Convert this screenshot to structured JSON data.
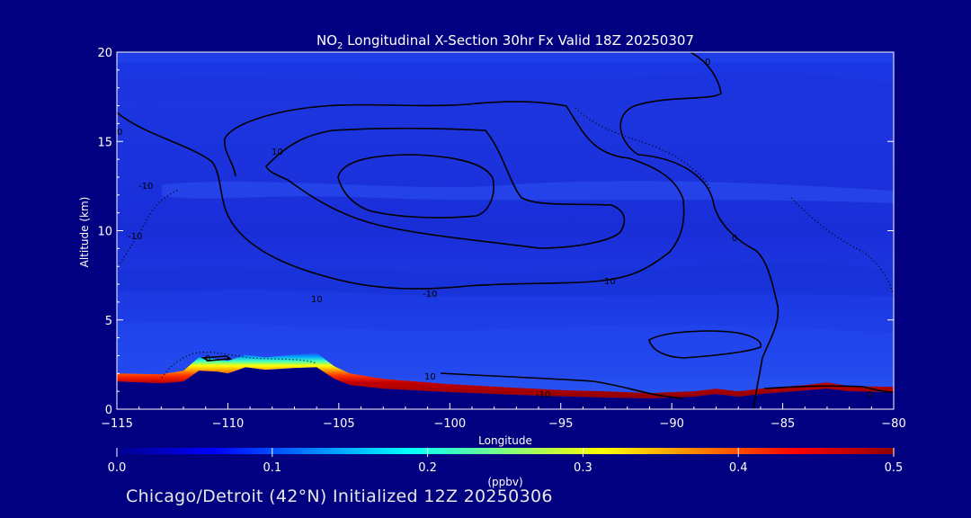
{
  "chart_data": {
    "type": "heatmap",
    "title": {
      "prefix": "NO",
      "subscript": "2",
      "rest": " Longitudinal X-Section 30hr  Fx Valid 18Z 20250307"
    },
    "xlabel": "Longitude",
    "ylabel": "Altitude (km)",
    "xlim": [
      -115,
      -80
    ],
    "ylim": [
      0,
      20
    ],
    "xticks": [
      -115,
      -110,
      -105,
      -100,
      -95,
      -90,
      -85,
      -80
    ],
    "yticks": [
      0,
      5,
      10,
      15,
      20
    ],
    "colorbar": {
      "label": "(ppbv)",
      "range": [
        0.0,
        0.5
      ],
      "ticks": [
        "0.0",
        "0.1",
        "0.2",
        "0.3",
        "0.4",
        "0.5"
      ],
      "colors": [
        "#00008f",
        "#0000ff",
        "#0080ff",
        "#00ffff",
        "#80ff80",
        "#ffff00",
        "#ff8000",
        "#ff0000",
        "#8f0000"
      ]
    },
    "colormap": "jet",
    "background_value_ppbv": 0.04,
    "terrain_height_km": [
      [
        -115,
        1.55
      ],
      [
        -113,
        1.45
      ],
      [
        -112,
        1.55
      ],
      [
        -111.3,
        2.15
      ],
      [
        -110.5,
        2.1
      ],
      [
        -110,
        2.0
      ],
      [
        -109.2,
        2.35
      ],
      [
        -108.3,
        2.2
      ],
      [
        -107,
        2.3
      ],
      [
        -106,
        2.35
      ],
      [
        -105.2,
        1.7
      ],
      [
        -104.5,
        1.35
      ],
      [
        -103,
        1.15
      ],
      [
        -100,
        0.95
      ],
      [
        -97,
        0.8
      ],
      [
        -95,
        0.72
      ],
      [
        -93,
        0.65
      ],
      [
        -91,
        0.6
      ],
      [
        -89,
        0.7
      ],
      [
        -88,
        0.85
      ],
      [
        -87,
        0.7
      ],
      [
        -86,
        0.85
      ],
      [
        -84,
        1.05
      ],
      [
        -83,
        1.15
      ],
      [
        -82,
        1.0
      ],
      [
        -80,
        0.95
      ]
    ],
    "surface_layer_peak_ppbv": [
      [
        -115,
        0.09
      ],
      [
        -113,
        0.22
      ],
      [
        -111,
        0.45
      ],
      [
        -109,
        0.44
      ],
      [
        -106,
        0.45
      ],
      [
        -104,
        0.4
      ],
      [
        -100,
        0.42
      ],
      [
        -95,
        0.46
      ],
      [
        -90,
        0.48
      ],
      [
        -88,
        0.5
      ],
      [
        -86,
        0.5
      ],
      [
        -84,
        0.48
      ],
      [
        -82,
        0.47
      ],
      [
        -80,
        0.38
      ]
    ],
    "contour_labels": [
      "0",
      "10",
      "10",
      "-10",
      "-10",
      "0",
      "10",
      "0",
      "-10",
      "0",
      "10",
      "-10",
      "0"
    ]
  },
  "footer": "Chicago/Detroit (42°N) Initialized 12Z 20250306"
}
